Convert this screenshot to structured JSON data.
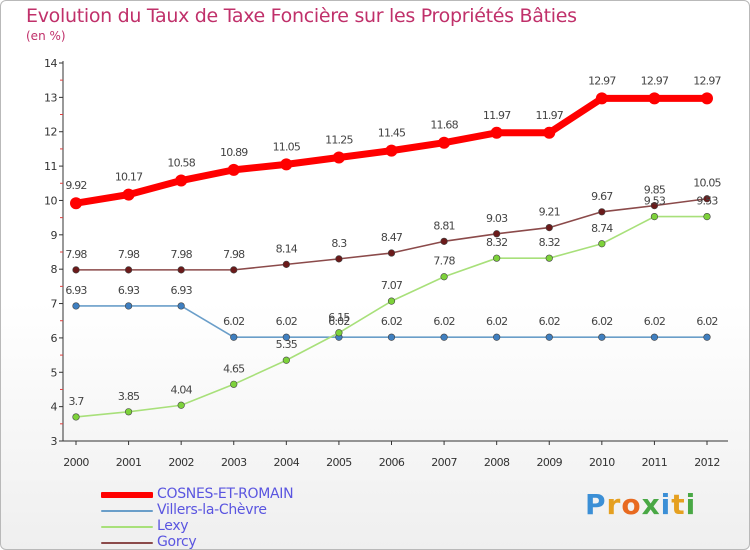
{
  "header": {
    "title": "Evolution du Taux de Taxe Foncière sur les Propriétés Bâties",
    "subtitle": "(en %)"
  },
  "logo": {
    "letters": [
      "P",
      "r",
      "o",
      "x",
      "i",
      "t",
      "i"
    ],
    "colors": [
      "#3b8fd6",
      "#e5a020",
      "#e86a20",
      "#49a845",
      "#3b8fd6",
      "#e5a020",
      "#49a845"
    ]
  },
  "chart_data": {
    "type": "line",
    "x": [
      "2000",
      "2001",
      "2002",
      "2003",
      "2004",
      "2005",
      "2006",
      "2007",
      "2008",
      "2009",
      "2010",
      "2011",
      "2012"
    ],
    "ylim": [
      3,
      14
    ],
    "yticks": [
      "3",
      "4",
      "5",
      "6",
      "7",
      "8",
      "9",
      "10",
      "11",
      "12",
      "13",
      "14"
    ],
    "grid": false,
    "legend_position": "bottom-left",
    "series": [
      {
        "name": "COSNES-ET-ROMAIN",
        "color": "#ff0000",
        "point_color": "#ff0000",
        "values": [
          9.92,
          10.17,
          10.58,
          10.89,
          11.05,
          11.25,
          11.45,
          11.68,
          11.97,
          11.97,
          12.97,
          12.97,
          12.97
        ],
        "labels": [
          "9.92",
          "10.17",
          "10.58",
          "10.89",
          "11.05",
          "11.25",
          "11.45",
          "11.68",
          "11.97",
          "11.97",
          "12.97",
          "12.97",
          "12.97"
        ]
      },
      {
        "name": "Villers-la-Chèvre",
        "color": "#6a9ec9",
        "point_color": "#3f7fc0",
        "values": [
          6.93,
          6.93,
          6.93,
          6.02,
          6.02,
          6.02,
          6.02,
          6.02,
          6.02,
          6.02,
          6.02,
          6.02,
          6.02
        ],
        "labels": [
          "6.93",
          "6.93",
          "6.93",
          "6.02",
          "6.02",
          "6.02",
          "6.02",
          "6.02",
          "6.02",
          "6.02",
          "6.02",
          "6.02",
          "6.02"
        ]
      },
      {
        "name": "Lexy",
        "color": "#a8e07a",
        "point_color": "#7dd23a",
        "values": [
          3.7,
          3.85,
          4.04,
          4.65,
          5.35,
          6.15,
          7.07,
          7.78,
          8.32,
          8.32,
          8.74,
          9.53,
          9.53
        ],
        "labels": [
          "3.7",
          "3.85",
          "4.04",
          "4.65",
          "5.35",
          "6.15",
          "7.07",
          "7.78",
          "8.32",
          "8.32",
          "8.74",
          "9.53",
          "9.53"
        ]
      },
      {
        "name": "Gorcy",
        "color": "#8b4a4a",
        "point_color": "#6b1a1a",
        "values": [
          7.98,
          7.98,
          7.98,
          7.98,
          8.14,
          8.3,
          8.47,
          8.81,
          9.03,
          9.21,
          9.67,
          9.85,
          10.05
        ],
        "labels": [
          "7.98",
          "7.98",
          "7.98",
          "7.98",
          "8.14",
          "8.3",
          "8.47",
          "8.81",
          "9.03",
          "9.21",
          "9.67",
          "9.85",
          "10.05"
        ]
      }
    ]
  }
}
